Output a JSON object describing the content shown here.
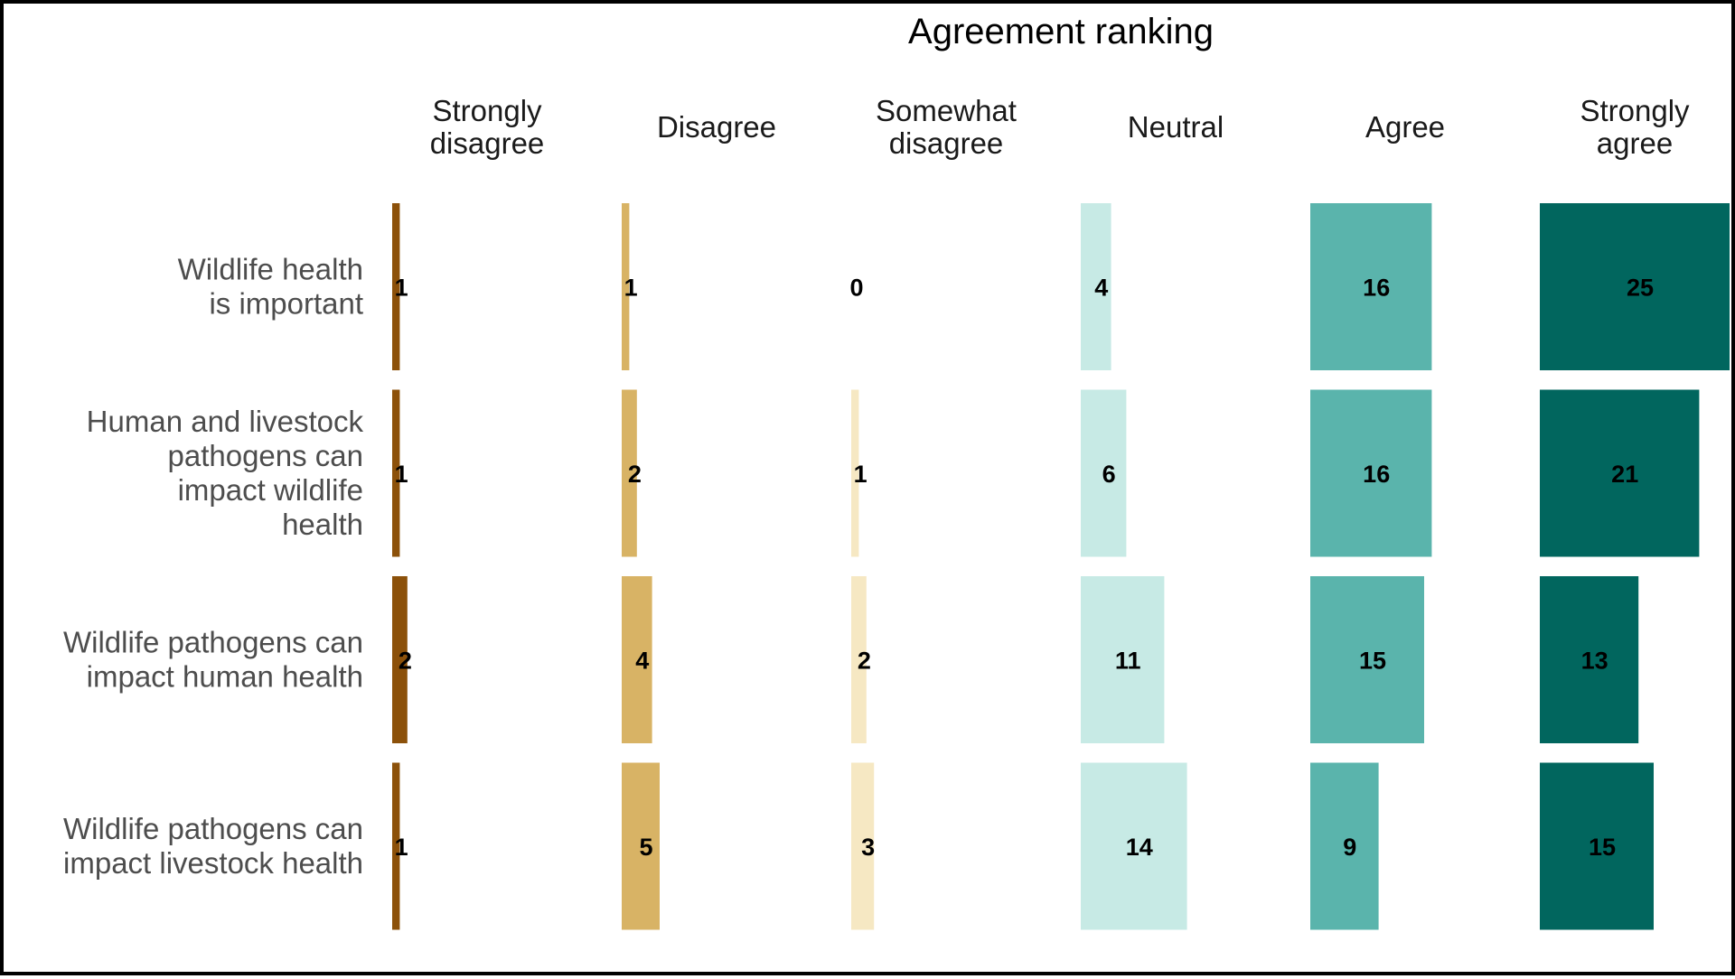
{
  "chart_data": {
    "type": "bar",
    "title": "Agreement ranking",
    "categories": [
      "Strongly\ndisagree",
      "Disagree",
      "Somewhat\ndisagree",
      "Neutral",
      "Agree",
      "Strongly\nagree"
    ],
    "rows": [
      "Wildlife health\nis important",
      "Human and livestock\npathogens can\nimpact wildlife\nhealth",
      "Wildlife pathogens can\nimpact human health",
      "Wildlife pathogens can\nimpact livestock health"
    ],
    "values": [
      [
        1,
        1,
        0,
        4,
        16,
        25
      ],
      [
        1,
        2,
        1,
        6,
        16,
        21
      ],
      [
        2,
        4,
        2,
        11,
        15,
        13
      ],
      [
        1,
        5,
        3,
        14,
        9,
        15
      ]
    ],
    "colors": [
      "#8C510A",
      "#D8B365",
      "#F6E8C3",
      "#C7EAE5",
      "#5AB4AC",
      "#01665E"
    ],
    "max_value": 25,
    "grid": false,
    "legend": "none"
  }
}
